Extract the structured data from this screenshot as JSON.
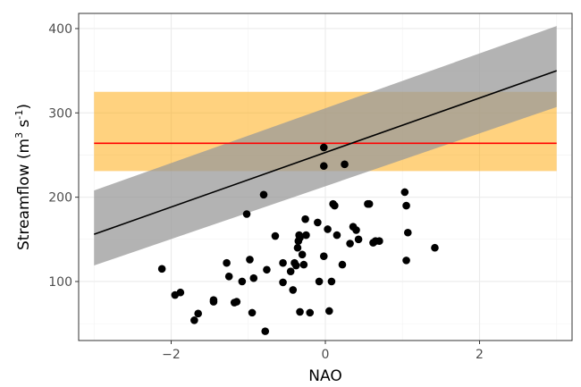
{
  "chart_data": {
    "type": "scatter",
    "xlabel": "NAO",
    "ylabel_main": "Streamflow (m",
    "ylabel_sup1": "3",
    "ylabel_mid": " s",
    "ylabel_sup2": "-1",
    "ylabel_end": ")",
    "xlim": [
      -3.2,
      3.2
    ],
    "ylim": [
      30,
      418
    ],
    "x_ticks": [
      {
        "value": -2,
        "label": "−2"
      },
      {
        "value": 0,
        "label": "0"
      },
      {
        "value": 2,
        "label": "2"
      }
    ],
    "y_ticks": [
      {
        "value": 100,
        "label": "100"
      },
      {
        "value": 200,
        "label": "200"
      },
      {
        "value": 300,
        "label": "300"
      },
      {
        "value": 400,
        "label": "400"
      }
    ],
    "grid": true,
    "regression": {
      "x": [
        -3.0,
        3.0
      ],
      "y": [
        156,
        350
      ],
      "lower": [
        119,
        307
      ],
      "upper": [
        208,
        403
      ],
      "line_color": "#000000",
      "band_color": "#999999"
    },
    "reference": {
      "x": [
        -3.0,
        3.0
      ],
      "y": 264,
      "lower": 231,
      "upper": 325,
      "line_color": "#ff0000",
      "band_color": "#ffa500"
    },
    "points": [
      {
        "x": -2.12,
        "y": 115
      },
      {
        "x": -1.95,
        "y": 84
      },
      {
        "x": -1.88,
        "y": 87
      },
      {
        "x": -1.7,
        "y": 54
      },
      {
        "x": -1.65,
        "y": 62
      },
      {
        "x": -1.45,
        "y": 78
      },
      {
        "x": -1.45,
        "y": 76
      },
      {
        "x": -1.28,
        "y": 122
      },
      {
        "x": -1.25,
        "y": 106
      },
      {
        "x": -1.18,
        "y": 75
      },
      {
        "x": -1.15,
        "y": 76
      },
      {
        "x": -1.08,
        "y": 100
      },
      {
        "x": -1.02,
        "y": 180
      },
      {
        "x": -0.98,
        "y": 126
      },
      {
        "x": -0.95,
        "y": 63
      },
      {
        "x": -0.93,
        "y": 104
      },
      {
        "x": -0.8,
        "y": 203
      },
      {
        "x": -0.78,
        "y": 41
      },
      {
        "x": -0.76,
        "y": 114
      },
      {
        "x": -0.65,
        "y": 154
      },
      {
        "x": -0.55,
        "y": 122
      },
      {
        "x": -0.55,
        "y": 99
      },
      {
        "x": -0.45,
        "y": 112
      },
      {
        "x": -0.42,
        "y": 90
      },
      {
        "x": -0.4,
        "y": 122
      },
      {
        "x": -0.38,
        "y": 119
      },
      {
        "x": -0.36,
        "y": 140
      },
      {
        "x": -0.35,
        "y": 148
      },
      {
        "x": -0.34,
        "y": 155
      },
      {
        "x": -0.33,
        "y": 152
      },
      {
        "x": -0.33,
        "y": 64
      },
      {
        "x": -0.3,
        "y": 132
      },
      {
        "x": -0.28,
        "y": 120
      },
      {
        "x": -0.26,
        "y": 174
      },
      {
        "x": -0.25,
        "y": 155
      },
      {
        "x": -0.2,
        "y": 63
      },
      {
        "x": -0.1,
        "y": 170
      },
      {
        "x": -0.08,
        "y": 100
      },
      {
        "x": -0.02,
        "y": 259
      },
      {
        "x": -0.02,
        "y": 237
      },
      {
        "x": -0.02,
        "y": 130
      },
      {
        "x": 0.03,
        "y": 162
      },
      {
        "x": 0.05,
        "y": 65
      },
      {
        "x": 0.08,
        "y": 100
      },
      {
        "x": 0.1,
        "y": 192
      },
      {
        "x": 0.12,
        "y": 190
      },
      {
        "x": 0.15,
        "y": 155
      },
      {
        "x": 0.22,
        "y": 120
      },
      {
        "x": 0.25,
        "y": 239
      },
      {
        "x": 0.32,
        "y": 145
      },
      {
        "x": 0.36,
        "y": 165
      },
      {
        "x": 0.4,
        "y": 161
      },
      {
        "x": 0.43,
        "y": 150
      },
      {
        "x": 0.55,
        "y": 192
      },
      {
        "x": 0.57,
        "y": 192
      },
      {
        "x": 0.62,
        "y": 146
      },
      {
        "x": 0.65,
        "y": 148
      },
      {
        "x": 0.7,
        "y": 148
      },
      {
        "x": 1.03,
        "y": 206
      },
      {
        "x": 1.05,
        "y": 190
      },
      {
        "x": 1.05,
        "y": 125
      },
      {
        "x": 1.07,
        "y": 158
      },
      {
        "x": 1.42,
        "y": 140
      }
    ]
  }
}
